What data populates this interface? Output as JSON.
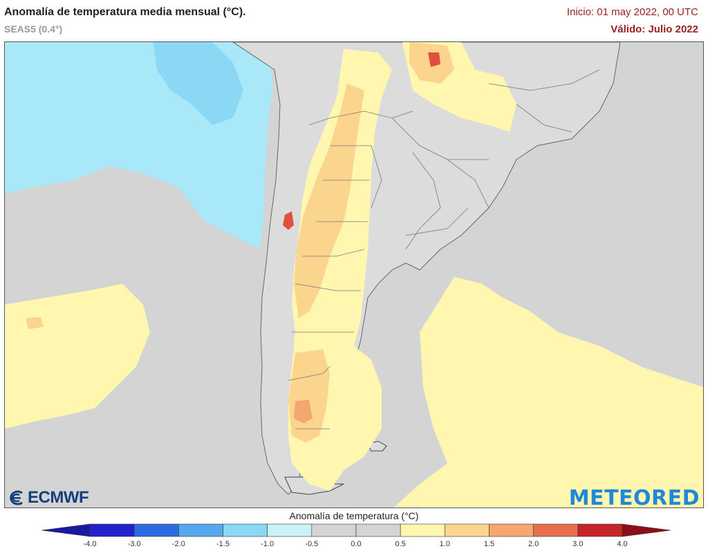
{
  "header": {
    "title": "Anomalía de temperatura media mensual (°C).",
    "model": "SEAS5 (0.4°)",
    "init": "Inicio: 01 may 2022, 00 UTC",
    "valid": "Válido: Julio 2022"
  },
  "logos": {
    "left": "ECMWF",
    "right": "METEORED"
  },
  "legend": {
    "title": "Anomalía de temperatura (°C)",
    "ticks": [
      "-4.0",
      "-3.0",
      "-2.0",
      "-1.5",
      "-1.0",
      "-0.5",
      "0.0",
      "0.5",
      "1.0",
      "1.5",
      "2.0",
      "3.0",
      "4.0"
    ],
    "colors": [
      "#2222cc",
      "#2f6be0",
      "#55a8ee",
      "#8ad8f4",
      "#c8f2f8",
      "#d4d4d4",
      "#d4d4d4",
      "#fff6b0",
      "#fbd48e",
      "#f4a870",
      "#e86e50",
      "#c4242a"
    ],
    "under_color": "#1a1aa0",
    "over_color": "#8a0f16"
  },
  "map": {
    "ocean_color": "#d4d4d4",
    "land_color": "#dcdcdc",
    "cold_color": "#a8e8f8",
    "warm1_color": "#fff6b0",
    "warm2_color": "#fbd48e",
    "warm3_color": "#f4a870",
    "hot_color": "#e0503c"
  }
}
